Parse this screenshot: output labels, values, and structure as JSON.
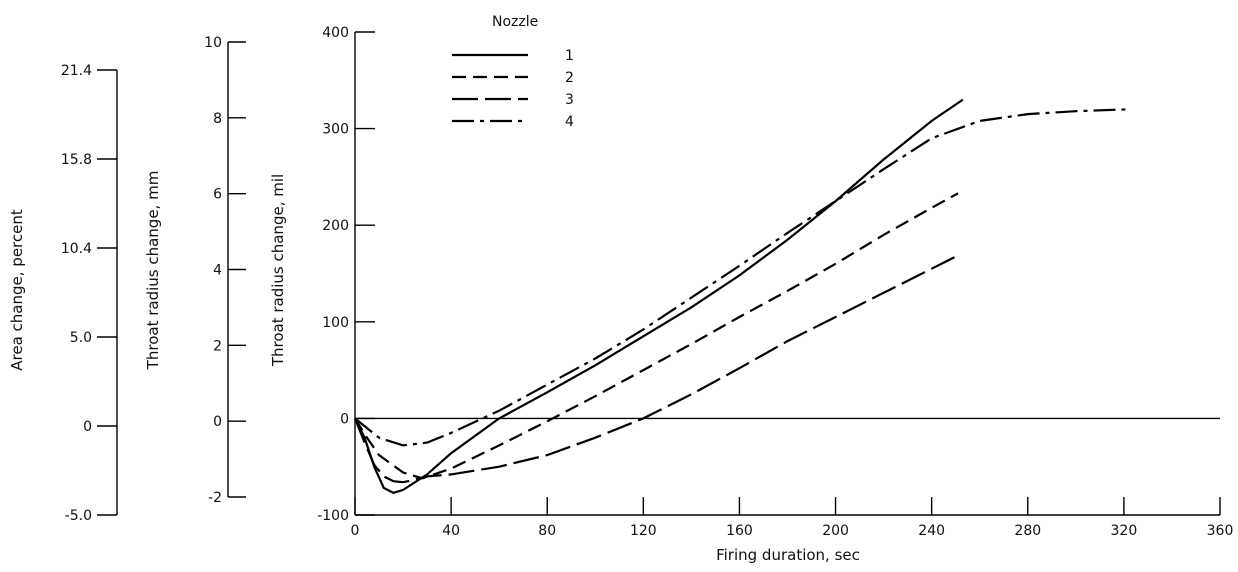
{
  "chart_data": {
    "type": "line",
    "xlabel": "Firing duration, sec",
    "xlim": [
      0,
      360
    ],
    "x_ticks": [
      0,
      40,
      80,
      120,
      160,
      200,
      240,
      280,
      320,
      360
    ],
    "ylabel": "Throat radius change, mil",
    "ylim": [
      -100,
      400
    ],
    "y_ticks": [
      -100,
      0,
      100,
      200,
      300,
      400
    ],
    "secondary_axes": [
      {
        "label": "Throat radius change, mm",
        "ticks": [
          -2,
          0,
          2,
          4,
          6,
          8,
          10
        ]
      },
      {
        "label": "Area change, percent",
        "tick_labels": [
          "-5.0",
          "0",
          "5.0",
          "10.4",
          "15.8",
          "21.4"
        ]
      }
    ],
    "legend_title": "Nozzle",
    "legend_position": "top-center",
    "series": [
      {
        "name": "1",
        "dash": "solid",
        "x": [
          0,
          4,
          8,
          12,
          16,
          20,
          30,
          40,
          60,
          80,
          100,
          120,
          140,
          160,
          180,
          200,
          220,
          240,
          253
        ],
        "y": [
          0,
          -20,
          -50,
          -72,
          -77,
          -74,
          -58,
          -36,
          0,
          27,
          55,
          85,
          115,
          148,
          185,
          225,
          268,
          308,
          330
        ]
      },
      {
        "name": "2",
        "dash": "short-dash",
        "x": [
          0,
          5,
          10,
          20,
          28,
          40,
          60,
          80,
          100,
          120,
          140,
          160,
          180,
          200,
          220,
          240,
          251
        ],
        "y": [
          0,
          -20,
          -38,
          -56,
          -62,
          -52,
          -28,
          -3,
          23,
          50,
          77,
          105,
          132,
          160,
          190,
          218,
          233
        ]
      },
      {
        "name": "3",
        "dash": "long-dash",
        "x": [
          0,
          4,
          8,
          12,
          16,
          20,
          24,
          30,
          40,
          60,
          80,
          100,
          120,
          140,
          160,
          180,
          200,
          220,
          240,
          252
        ],
        "y": [
          0,
          -25,
          -48,
          -60,
          -65,
          -66,
          -64,
          -60,
          -58,
          -50,
          -38,
          -20,
          0,
          25,
          52,
          80,
          105,
          130,
          155,
          170
        ]
      },
      {
        "name": "4",
        "dash": "dash-dot",
        "x": [
          0,
          5,
          10,
          20,
          30,
          40,
          60,
          80,
          100,
          120,
          140,
          160,
          180,
          200,
          220,
          240,
          260,
          280,
          300,
          322
        ],
        "y": [
          0,
          -10,
          -20,
          -28,
          -25,
          -15,
          8,
          35,
          62,
          92,
          125,
          158,
          192,
          225,
          258,
          290,
          308,
          315,
          318,
          320
        ]
      }
    ]
  }
}
